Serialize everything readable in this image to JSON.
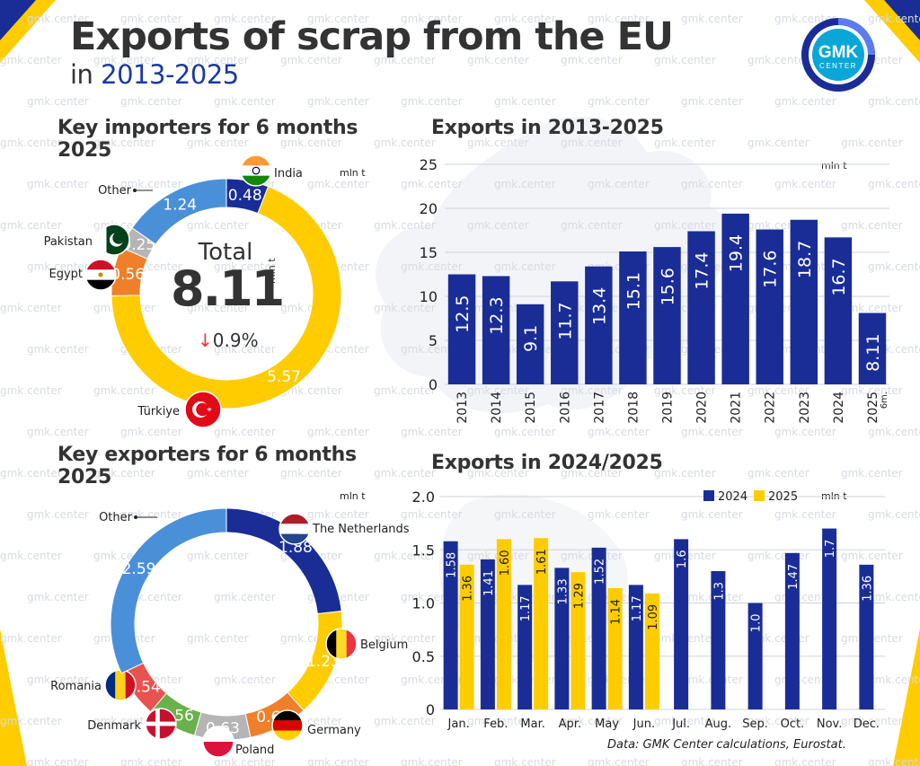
{
  "title": "Exports of scrap from the EU",
  "subtitle_prefix": "in",
  "subtitle_years": "2013-2025",
  "logo": {
    "line1": "GMK",
    "line2": "CENTER"
  },
  "watermark": "gmk.center",
  "source": "Data: GMK Center calculations, Eurostat.",
  "colors": {
    "navy": "#1a2d96",
    "yellow": "#ffcc00",
    "lightblue": "#4a90d9",
    "orange": "#f07f2a",
    "gray": "#b5b5b5",
    "red": "#e8534f",
    "green": "#6ab04c",
    "darkgray": "#8f8f8f"
  },
  "importers": {
    "heading": "Key importers for 6 months 2025",
    "unit": "mln t",
    "total_label": "Total",
    "total_value": "8.11",
    "total_unit": "mln t",
    "change": "0.9%",
    "change_arrow": "↓",
    "slices": [
      {
        "name": "India",
        "value": 0.48,
        "label": "0.48",
        "color": "#1a2d96",
        "flag": "india"
      },
      {
        "name": "Türkiye",
        "value": 5.57,
        "label": "5.57",
        "color": "#ffcc00",
        "flag": "turkey"
      },
      {
        "name": "Egypt",
        "value": 0.56,
        "label": "0.56",
        "color": "#f07f2a",
        "flag": "egypt"
      },
      {
        "name": "Pakistan",
        "value": 0.25,
        "label": "0.25",
        "color": "#b5b5b5",
        "flag": "pakistan"
      },
      {
        "name": "Other",
        "value": 1.24,
        "label": "1.24",
        "color": "#4a90d9",
        "flag": ""
      }
    ]
  },
  "exporters": {
    "heading": "Key exporters for 6 months 2025",
    "unit": "mln t",
    "slices": [
      {
        "name": "The Netherlands",
        "value": 1.88,
        "label": "1.88",
        "color": "#1a2d96",
        "flag": "netherlands"
      },
      {
        "name": "Belgium",
        "value": 1.23,
        "label": "1.23",
        "color": "#ffcc00",
        "flag": "belgium"
      },
      {
        "name": "Germany",
        "value": 0.67,
        "label": "0.67",
        "color": "#f07f2a",
        "flag": "germany"
      },
      {
        "name": "Poland",
        "value": 0.63,
        "label": "0.63",
        "color": "#b5b5b5",
        "flag": "poland"
      },
      {
        "name": "Denmark",
        "value": 0.56,
        "label": "0.56",
        "color": "#6ab04c",
        "flag": "denmark"
      },
      {
        "name": "Romania",
        "value": 0.54,
        "label": "0.54",
        "color": "#e8534f",
        "flag": "romania"
      },
      {
        "name": "Other",
        "value": 2.59,
        "label": "2.59",
        "color": "#4a90d9",
        "flag": ""
      }
    ]
  },
  "chart_data": [
    {
      "type": "bar",
      "title": "Exports in 2013-2025",
      "unit": "mln t",
      "categories": [
        "2013",
        "2014",
        "2015",
        "2016",
        "2017",
        "2018",
        "2019",
        "2020",
        "2021",
        "2022",
        "2023",
        "2024",
        "2025"
      ],
      "category_note": {
        "index": 12,
        "text": "6m."
      },
      "values": [
        12.5,
        12.3,
        9.1,
        11.7,
        13.4,
        15.1,
        15.6,
        17.4,
        19.4,
        17.6,
        18.7,
        16.7,
        8.11
      ],
      "ylim": [
        0,
        25
      ],
      "yticks": [
        0,
        5,
        10,
        15,
        20,
        25
      ],
      "grid": true,
      "color": "#1a2d96"
    },
    {
      "type": "bar",
      "title": "Exports in 2024/2025",
      "unit": "mln t",
      "categories": [
        "Jan.",
        "Feb.",
        "Mar.",
        "Apr.",
        "May",
        "Jun.",
        "Jul.",
        "Aug.",
        "Sep.",
        "Oct.",
        "Nov.",
        "Dec."
      ],
      "series": [
        {
          "name": "2024",
          "color": "#1a2d96",
          "values": [
            1.58,
            1.41,
            1.17,
            1.33,
            1.52,
            1.17,
            1.6,
            1.3,
            1.0,
            1.47,
            1.7,
            1.36
          ]
        },
        {
          "name": "2025",
          "color": "#ffcc00",
          "values": [
            1.36,
            1.6,
            1.61,
            1.29,
            1.14,
            1.09,
            null,
            null,
            null,
            null,
            null,
            null
          ]
        }
      ],
      "labels": {
        "2024": [
          "1.58",
          "1.41",
          "1.17",
          "1.33",
          "1.52",
          "1.17",
          "1.6",
          "1.3",
          "1.0",
          "1.47",
          "1.7",
          "1.36"
        ],
        "2025": [
          "1.36",
          "1.60",
          "1.61",
          "1.29",
          "1.14",
          "1.09"
        ]
      },
      "ylim": [
        0,
        2.0
      ],
      "yticks": [
        "0",
        "0.5",
        "1.0",
        "1.5",
        "2.0"
      ],
      "grid": true,
      "legend": "top-right"
    }
  ]
}
